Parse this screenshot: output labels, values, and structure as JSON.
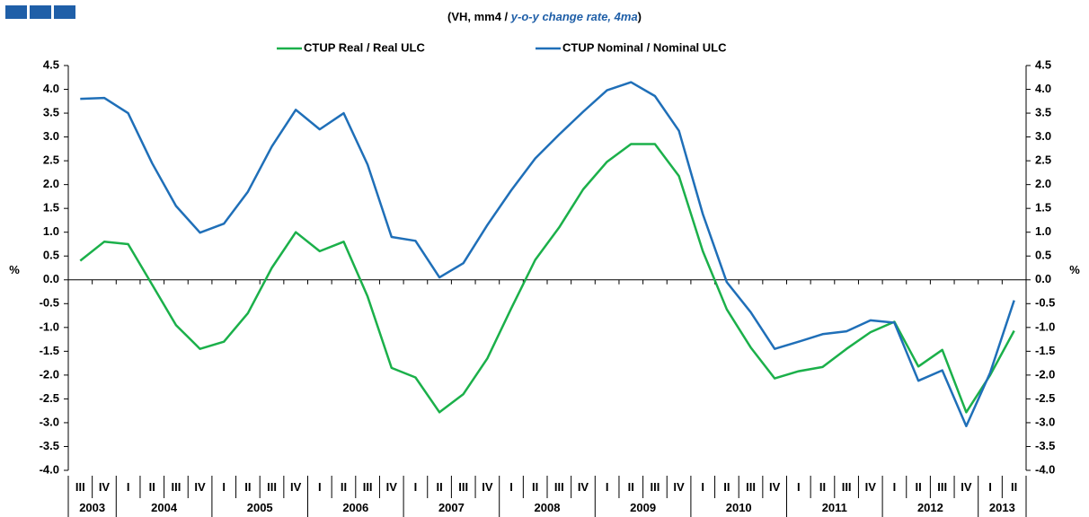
{
  "chart_data": {
    "type": "line",
    "title": [
      "(VH, mm4 / ",
      "y-o-y change rate, 4ma",
      ")"
    ],
    "ylabel": "%",
    "y2label": "%",
    "categories": [
      "III",
      "IV",
      "I",
      "II",
      "III",
      "IV",
      "I",
      "II",
      "III",
      "IV",
      "I",
      "II",
      "III",
      "IV",
      "I",
      "II",
      "III",
      "IV",
      "I",
      "II",
      "III",
      "IV",
      "I",
      "II",
      "III",
      "IV",
      "I",
      "II",
      "III",
      "IV",
      "I",
      "II",
      "III",
      "IV",
      "I",
      "II",
      "III",
      "IV",
      "I",
      "II"
    ],
    "years": [
      "2003",
      "2004",
      "2005",
      "2006",
      "2007",
      "2008",
      "2009",
      "2010",
      "2011",
      "2012",
      "2013"
    ],
    "series": [
      {
        "name": "CTUP Real / Real ULC",
        "color": "#1bb04a",
        "values": [
          0.4,
          0.8,
          0.75,
          -0.1,
          -0.95,
          -1.45,
          -1.3,
          -0.7,
          0.25,
          1.0,
          0.6,
          0.8,
          -0.35,
          -1.85,
          -2.05,
          -2.78,
          -2.4,
          -1.65,
          -0.6,
          0.42,
          1.1,
          1.9,
          2.48,
          2.85,
          2.85,
          2.18,
          0.6,
          -0.62,
          -1.42,
          -2.07,
          -1.92,
          -1.83,
          -1.45,
          -1.1,
          -0.88,
          -1.82,
          -1.47,
          -2.78,
          -2.0,
          -1.07
        ]
      },
      {
        "name": "CTUP Nominal / Nominal ULC",
        "color": "#1f6fb8",
        "values": [
          3.8,
          3.82,
          3.5,
          2.45,
          1.55,
          0.99,
          1.18,
          1.85,
          2.8,
          3.57,
          3.16,
          3.5,
          2.42,
          0.9,
          0.82,
          0.05,
          0.35,
          1.15,
          1.88,
          2.55,
          3.05,
          3.53,
          3.98,
          4.15,
          3.86,
          3.13,
          1.38,
          -0.05,
          -0.68,
          -1.45,
          -1.3,
          -1.14,
          -1.08,
          -0.85,
          -0.9,
          -2.12,
          -1.9,
          -3.07,
          -1.95,
          -0.43
        ]
      }
    ],
    "ylim": [
      -4,
      4.5
    ],
    "yticks": [
      4.5,
      {
        "value": 4,
        "label": "4.0"
      },
      3.5,
      {
        "value": 3,
        "label": "3.0"
      },
      2.5,
      {
        "value": 2,
        "label": "2.0"
      },
      1.5,
      {
        "value": 1,
        "label": "1.0"
      },
      0.5,
      {
        "value": 0,
        "label": "0.0"
      },
      -0.5,
      {
        "value": -1,
        "label": "-1.0"
      },
      -1.5,
      {
        "value": -2,
        "label": "-2.0"
      },
      -2.5,
      {
        "value": -3,
        "label": "-3.0"
      },
      -3.5,
      {
        "value": -4,
        "label": "-4.0"
      }
    ],
    "y2lim": [
      -4,
      4.5
    ],
    "y2ticks": [
      4.5,
      {
        "value": 4,
        "label": "4.0"
      },
      3.5,
      {
        "value": 3,
        "label": "3.0"
      },
      2.5,
      {
        "value": 2,
        "label": "2.0"
      },
      1.5,
      {
        "value": 1,
        "label": "1.0"
      },
      0.5,
      {
        "value": 0,
        "label": "0.0"
      },
      -0.5,
      {
        "value": -1,
        "label": "-1.0"
      },
      -1.5,
      {
        "value": -2,
        "label": "-2.0"
      },
      -2.5,
      {
        "value": -3,
        "label": "-3.0"
      },
      -3.5,
      {
        "value": -4,
        "label": "-4.0"
      }
    ],
    "legend": "top"
  }
}
